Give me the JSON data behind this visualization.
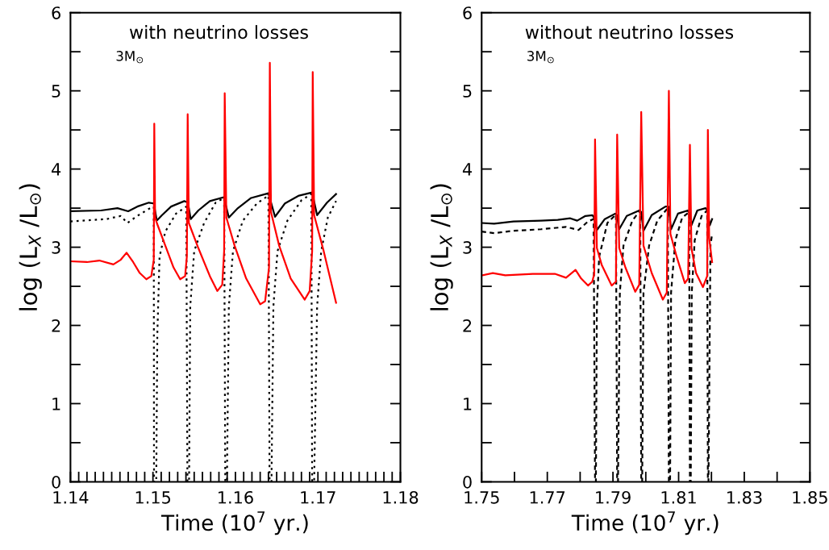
{
  "chart_data": [
    {
      "type": "line",
      "xlabel": "Time (10$^{7}$ yr.)",
      "ylabel": "log (L$_{X}$ /L$_{⊙}$)",
      "annotations": [
        "with neutrino losses",
        "3M$_{⊙}$"
      ],
      "xlim": [
        1.14,
        1.18
      ],
      "ylim": [
        0,
        6
      ],
      "xticks": [
        1.14,
        {
          "value": 1.141,
          "label": null
        },
        {
          "value": 1.142,
          "label": null
        },
        {
          "value": 1.143,
          "label": null
        },
        {
          "value": 1.144,
          "label": null
        },
        {
          "value": 1.145,
          "label": null
        },
        {
          "value": 1.146,
          "label": null
        },
        {
          "value": 1.147,
          "label": null
        },
        {
          "value": 1.148,
          "label": null
        },
        {
          "value": 1.149,
          "label": null
        },
        1.15,
        {
          "value": 1.151,
          "label": null
        },
        {
          "value": 1.152,
          "label": null
        },
        {
          "value": 1.153,
          "label": null
        },
        {
          "value": 1.154,
          "label": null
        },
        {
          "value": 1.155,
          "label": null
        },
        {
          "value": 1.156,
          "label": null
        },
        {
          "value": 1.157,
          "label": null
        },
        {
          "value": 1.158,
          "label": null
        },
        {
          "value": 1.159,
          "label": null
        },
        1.16,
        {
          "value": 1.161,
          "label": null
        },
        {
          "value": 1.162,
          "label": null
        },
        {
          "value": 1.163,
          "label": null
        },
        {
          "value": 1.164,
          "label": null
        },
        {
          "value": 1.165,
          "label": null
        },
        {
          "value": 1.166,
          "label": null
        },
        {
          "value": 1.167,
          "label": null
        },
        {
          "value": 1.168,
          "label": null
        },
        {
          "value": 1.169,
          "label": null
        },
        1.17,
        {
          "value": 1.171,
          "label": null
        },
        {
          "value": 1.172,
          "label": null
        },
        {
          "value": 1.173,
          "label": null
        },
        {
          "value": 1.174,
          "label": null
        },
        {
          "value": 1.175,
          "label": null
        },
        {
          "value": 1.176,
          "label": null
        },
        {
          "value": 1.177,
          "label": null
        },
        {
          "value": 1.178,
          "label": null
        },
        {
          "value": 1.179,
          "label": null
        },
        1.18
      ],
      "yticks": [
        0,
        {
          "value": 0.5,
          "label": null
        },
        1,
        {
          "value": 1.5,
          "label": null
        },
        2,
        {
          "value": 2.5,
          "label": null
        },
        3,
        {
          "value": 3.5,
          "label": null
        },
        4,
        {
          "value": 4.5,
          "label": null
        },
        5,
        {
          "value": 5.5,
          "label": null
        },
        6
      ],
      "grid": false,
      "series": [
        {
          "color": "#000000",
          "line_style": "solid",
          "x": [
            1.14,
            1.1437,
            1.1457,
            1.147,
            1.1481,
            1.1495,
            1.1501,
            1.15047,
            1.1511,
            1.1522,
            1.1538,
            1.15424,
            1.15458,
            1.1555,
            1.1569,
            1.1586,
            1.1592,
            1.1603,
            1.1619,
            1.164,
            1.1648,
            1.166,
            1.1677,
            1.1693,
            1.1699,
            1.1711,
            1.1722
          ],
          "values": [
            3.46,
            3.47,
            3.5,
            3.46,
            3.52,
            3.57,
            3.56,
            3.34,
            3.41,
            3.52,
            3.59,
            3.57,
            3.36,
            3.47,
            3.59,
            3.64,
            3.38,
            3.5,
            3.63,
            3.69,
            3.39,
            3.56,
            3.66,
            3.7,
            3.41,
            3.57,
            3.68
          ]
        },
        {
          "color": "#000000",
          "line_style": "dotted",
          "x": [
            1.14,
            1.1444,
            1.1461,
            1.1469,
            1.1481,
            1.1495,
            1.1501,
            1.15013,
            1.1504,
            1.15053,
            1.1508,
            1.1515,
            1.1528,
            1.15404,
            1.15418,
            1.15438,
            1.15452,
            1.155,
            1.1562,
            1.1576,
            1.15863,
            1.15877,
            1.15897,
            1.1592,
            1.1597,
            1.1609,
            1.1626,
            1.164,
            1.16414,
            1.16437,
            1.1646,
            1.1651,
            1.1663,
            1.168,
            1.1692,
            1.1693,
            1.16954,
            1.1699,
            1.1704,
            1.1712,
            1.1722
          ],
          "values": [
            3.33,
            3.36,
            3.4,
            3.31,
            3.4,
            3.49,
            3.52,
            0,
            0,
            1.88,
            2.88,
            3.2,
            3.43,
            3.52,
            0,
            0,
            2.24,
            2.95,
            3.31,
            3.57,
            3.63,
            0,
            0,
            2.24,
            2.95,
            3.34,
            3.56,
            3.66,
            0,
            0,
            2.24,
            2.95,
            3.34,
            3.6,
            3.68,
            0,
            0,
            2.24,
            2.95,
            3.38,
            3.59
          ]
        },
        {
          "color": "#ff0000",
          "line_style": "solid",
          "x": [
            1.14,
            1.142,
            1.1435,
            1.1452,
            1.1461,
            1.1468,
            1.1476,
            1.1484,
            1.1492,
            1.1498,
            1.1501,
            1.15016,
            1.15026,
            1.15047,
            1.1515,
            1.1525,
            1.1533,
            1.1539,
            1.15411,
            1.15421,
            1.15435,
            1.1555,
            1.1569,
            1.1578,
            1.1584,
            1.15863,
            1.1587,
            1.1589,
            1.1599,
            1.1613,
            1.163,
            1.1636,
            1.16407,
            1.16417,
            1.16431,
            1.1653,
            1.1667,
            1.1684,
            1.169,
            1.1693,
            1.16937,
            1.16954,
            1.1707,
            1.1722
          ],
          "values": [
            2.82,
            2.81,
            2.83,
            2.78,
            2.84,
            2.93,
            2.81,
            2.67,
            2.59,
            2.63,
            2.84,
            4.58,
            3.38,
            3.31,
            3.02,
            2.74,
            2.59,
            2.63,
            2.88,
            4.7,
            3.31,
            2.99,
            2.63,
            2.44,
            2.52,
            2.95,
            4.97,
            3.38,
            3.02,
            2.6,
            2.27,
            2.31,
            2.74,
            5.36,
            3.45,
            3.02,
            2.6,
            2.33,
            2.44,
            2.95,
            5.24,
            3.41,
            2.95,
            2.29
          ]
        }
      ]
    },
    {
      "type": "line",
      "xlabel": "Time (10$^{7}$ yr.)",
      "ylabel": "log (L$_{X}$ /L$_{⊙}$)",
      "annotations": [
        "without neutrino losses",
        "3M$_{⊙}$"
      ],
      "xlim": [
        1.75,
        1.85
      ],
      "ylim": [
        0,
        6
      ],
      "xticks": [
        1.75,
        {
          "value": 1.76,
          "label": null
        },
        1.77,
        {
          "value": 1.78,
          "label": null
        },
        1.79,
        {
          "value": 1.8,
          "label": null
        },
        1.81,
        {
          "value": 1.82,
          "label": null
        },
        1.83,
        {
          "value": 1.84,
          "label": null
        },
        1.85
      ],
      "yticks": [
        0,
        {
          "value": 0.5,
          "label": null
        },
        1,
        {
          "value": 1.5,
          "label": null
        },
        2,
        {
          "value": 2.5,
          "label": null
        },
        3,
        {
          "value": 3.5,
          "label": null
        },
        4,
        {
          "value": 4.5,
          "label": null
        },
        5,
        {
          "value": 5.5,
          "label": null
        },
        6
      ],
      "grid": false,
      "series": [
        {
          "color": "#000000",
          "line_style": "solid",
          "x": [
            1.75,
            1.7538,
            1.7597,
            1.7681,
            1.7732,
            1.777,
            1.7791,
            1.7816,
            1.7837,
            1.7841,
            1.7851,
            1.7875,
            1.7907,
            1.7912,
            1.7919,
            1.7942,
            1.798,
            1.7986,
            1.7993,
            1.8018,
            1.806,
            1.8069,
            1.8077,
            1.8098,
            1.8128,
            1.8134,
            1.8139,
            1.8157,
            1.8182,
            1.8188,
            1.8195,
            1.8202
          ],
          "values": [
            3.31,
            3.3,
            3.33,
            3.34,
            3.35,
            3.37,
            3.34,
            3.4,
            3.41,
            3.39,
            3.22,
            3.36,
            3.43,
            3.41,
            3.23,
            3.4,
            3.47,
            3.45,
            3.21,
            3.41,
            3.52,
            3.52,
            3.23,
            3.43,
            3.47,
            3.43,
            3.28,
            3.47,
            3.5,
            3.47,
            3.28,
            3.36
          ]
        },
        {
          "color": "#000000",
          "line_style": "dashed",
          "x": [
            1.75,
            1.7538,
            1.7597,
            1.7681,
            1.7757,
            1.7795,
            1.7824,
            1.7841,
            1.78454,
            1.7848,
            1.7851,
            1.7858,
            1.7883,
            1.7909,
            1.79128,
            1.79154,
            1.7921,
            1.7932,
            1.7959,
            1.7983,
            1.79861,
            1.7989,
            1.7993,
            1.801,
            1.8035,
            1.8067,
            1.80703,
            1.8074,
            1.8077,
            1.809,
            1.8111,
            1.8132,
            1.81344,
            1.8137,
            1.814,
            1.8149,
            1.817,
            1.8187,
            1.81891,
            1.8191,
            1.8197,
            1.8202
          ],
          "values": [
            3.2,
            3.18,
            3.21,
            3.23,
            3.26,
            3.22,
            3.33,
            3.36,
            0,
            0,
            2.24,
            2.88,
            3.31,
            3.42,
            0,
            0,
            2.42,
            3.02,
            3.34,
            3.47,
            0,
            0,
            2.42,
            3.02,
            3.34,
            3.5,
            0,
            0,
            2.42,
            3.09,
            3.38,
            3.45,
            0,
            0,
            2.42,
            3.09,
            3.4,
            3.47,
            0,
            0,
            3.02,
            3.17
          ]
        },
        {
          "color": "#ff0000",
          "line_style": "solid",
          "x": [
            1.75,
            1.7534,
            1.7572,
            1.7656,
            1.7723,
            1.7757,
            1.7786,
            1.7803,
            1.7824,
            1.7837,
            1.7843,
            1.78454,
            1.7851,
            1.7866,
            1.7896,
            1.7909,
            1.79128,
            1.7919,
            1.7938,
            1.7968,
            1.798,
            1.79861,
            1.7993,
            1.8018,
            1.8052,
            1.8064,
            1.80703,
            1.8075,
            1.8094,
            1.8119,
            1.8129,
            1.81344,
            1.8139,
            1.8153,
            1.8174,
            1.8187,
            1.81891,
            1.8193,
            1.8202
          ],
          "values": [
            2.64,
            2.67,
            2.64,
            2.66,
            2.66,
            2.61,
            2.71,
            2.6,
            2.51,
            2.56,
            2.66,
            4.38,
            2.99,
            2.77,
            2.51,
            2.56,
            4.44,
            2.99,
            2.74,
            2.43,
            2.52,
            4.73,
            3.02,
            2.67,
            2.33,
            2.42,
            5.0,
            3.17,
            2.88,
            2.54,
            2.6,
            4.31,
            2.99,
            2.67,
            2.49,
            2.63,
            4.5,
            3.12,
            2.81
          ]
        }
      ]
    }
  ]
}
